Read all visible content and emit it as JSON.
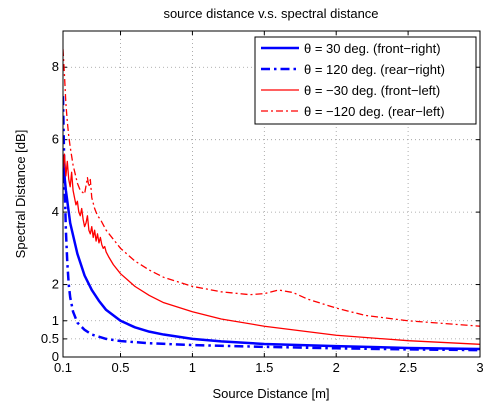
{
  "chart_data": {
    "type": "line",
    "title": "source distance v.s. spectral distance",
    "xlabel": "Source Distance [m]",
    "ylabel": "Spectral Distance [dB]",
    "xlim": [
      0.1,
      3.0
    ],
    "ylim": [
      0,
      9
    ],
    "xticks": [
      0.1,
      0.5,
      1,
      1.5,
      2,
      2.5,
      3
    ],
    "xtick_labels": [
      "0.1",
      "0.5",
      "1",
      "1.5",
      "2",
      "2.5",
      "3"
    ],
    "yticks": [
      0,
      0.5,
      1,
      2,
      4,
      6,
      8
    ],
    "ytick_labels": [
      "0",
      "0.5",
      "1",
      "2",
      "4",
      "6",
      "8"
    ],
    "grid": true,
    "legend_position": "top-right",
    "series": [
      {
        "name": "θ = 30 deg. (front−right)",
        "color": "#0000ff",
        "style": "solid",
        "width": 2.5,
        "x": [
          0.1,
          0.12,
          0.15,
          0.2,
          0.25,
          0.3,
          0.35,
          0.4,
          0.5,
          0.6,
          0.7,
          0.8,
          1.0,
          1.2,
          1.5,
          2.0,
          2.5,
          3.0
        ],
        "y": [
          5.4,
          4.6,
          3.7,
          2.85,
          2.25,
          1.85,
          1.55,
          1.3,
          1.0,
          0.82,
          0.7,
          0.62,
          0.5,
          0.43,
          0.36,
          0.3,
          0.25,
          0.22
        ]
      },
      {
        "name": "θ = 120 deg. (rear−right)",
        "color": "#0000ff",
        "style": "dashdot",
        "width": 2.5,
        "x": [
          0.1,
          0.11,
          0.12,
          0.13,
          0.14,
          0.15,
          0.17,
          0.2,
          0.25,
          0.3,
          0.4,
          0.5,
          0.7,
          1.0,
          1.5,
          2.0,
          2.5,
          3.0
        ],
        "y": [
          7.2,
          5.0,
          3.5,
          2.6,
          2.0,
          1.65,
          1.25,
          0.95,
          0.75,
          0.62,
          0.5,
          0.44,
          0.38,
          0.33,
          0.28,
          0.24,
          0.21,
          0.19
        ]
      },
      {
        "name": "θ = −30 deg. (front−left)",
        "color": "#ff0000",
        "style": "solid",
        "width": 1.3,
        "x": [
          0.1,
          0.11,
          0.12,
          0.13,
          0.14,
          0.15,
          0.16,
          0.17,
          0.18,
          0.19,
          0.2,
          0.21,
          0.22,
          0.23,
          0.24,
          0.25,
          0.26,
          0.27,
          0.28,
          0.29,
          0.3,
          0.31,
          0.32,
          0.33,
          0.34,
          0.35,
          0.36,
          0.37,
          0.38,
          0.39,
          0.4,
          0.42,
          0.45,
          0.5,
          0.6,
          0.7,
          0.8,
          1.0,
          1.2,
          1.5,
          2.0,
          2.5,
          3.0
        ],
        "y": [
          5.2,
          5.6,
          5.0,
          5.4,
          4.9,
          4.7,
          5.1,
          4.6,
          4.4,
          4.2,
          4.3,
          4.0,
          3.9,
          4.1,
          3.8,
          3.6,
          3.7,
          3.9,
          3.5,
          3.4,
          3.6,
          3.3,
          3.5,
          3.2,
          3.4,
          3.15,
          3.3,
          3.1,
          3.0,
          3.05,
          2.9,
          2.75,
          2.55,
          2.3,
          1.95,
          1.7,
          1.5,
          1.25,
          1.05,
          0.85,
          0.6,
          0.45,
          0.35
        ]
      },
      {
        "name": "θ = −120 deg. (rear−left)",
        "color": "#ff0000",
        "style": "dashdot",
        "width": 1.3,
        "x": [
          0.1,
          0.11,
          0.12,
          0.13,
          0.14,
          0.15,
          0.17,
          0.2,
          0.22,
          0.25,
          0.27,
          0.28,
          0.29,
          0.3,
          0.32,
          0.34,
          0.36,
          0.38,
          0.4,
          0.45,
          0.5,
          0.6,
          0.7,
          0.8,
          1.0,
          1.2,
          1.4,
          1.5,
          1.6,
          1.7,
          1.8,
          2.0,
          2.2,
          2.5,
          3.0
        ],
        "y": [
          8.5,
          7.8,
          7.0,
          6.5,
          6.1,
          5.8,
          5.3,
          4.8,
          4.6,
          4.5,
          4.95,
          4.7,
          4.9,
          4.4,
          4.1,
          3.9,
          3.8,
          3.65,
          3.5,
          3.25,
          3.0,
          2.65,
          2.4,
          2.2,
          1.95,
          1.8,
          1.72,
          1.75,
          1.85,
          1.78,
          1.6,
          1.35,
          1.15,
          1.0,
          0.85
        ]
      }
    ]
  }
}
